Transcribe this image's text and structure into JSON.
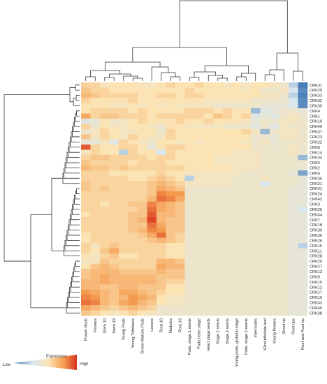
{
  "chart_data": {
    "type": "heatmap",
    "columns": [
      "Flower Buds",
      "Flowers",
      "Stem.10",
      "Stem.19",
      "Young Pods",
      "Young Trifoliates",
      "Green.Mature.Pods",
      "Leaves",
      "Root.10",
      "Nodules",
      "Root.19",
      "Pods..stage.1.seeds",
      "Pods.heart.stage",
      "Heart.stage.seeds",
      "Stage.1.seeds",
      "Stage.2.seeds",
      "Young.pods..globular.stage",
      "Pods..stage.2.seeds",
      "Internodes",
      "X2nd.trifoliate.leaf",
      "Young flowers",
      "Shoot tip",
      "Root tips",
      "Root and Root tip"
    ],
    "rows": [
      "CRK31",
      "CRK29",
      "CRK33",
      "CRK32",
      "CRK30",
      "CRK4",
      "CRK1",
      "CRK19",
      "CRK40",
      "CRK37",
      "CRK23",
      "CRK22",
      "CRK8",
      "CRK14",
      "CRK34",
      "CRK5",
      "CRK2",
      "CRK6",
      "CRK35",
      "CRK21",
      "CRK41",
      "CRK24",
      "CRK42",
      "CRK3",
      "CRK25",
      "CRK44",
      "CRK7",
      "CRK18",
      "CRK39",
      "CRK36",
      "CRK26",
      "CRK16",
      "CRK11",
      "CRK28",
      "CRK20",
      "CRK27",
      "CRK13",
      "CRK9",
      "CRK15",
      "CRK12",
      "CRK17",
      "CRK10",
      "CRK43",
      "CRK45",
      "CRK38"
    ],
    "values": [
      [
        0.55,
        0.55,
        0.45,
        0.5,
        0.5,
        0.5,
        0.45,
        0.45,
        0.5,
        0.55,
        0.5,
        0.5,
        0.55,
        0.5,
        0.5,
        0.45,
        0.5,
        0.45,
        0.5,
        0.5,
        0.45,
        0.4,
        0.2,
        0.02
      ],
      [
        0.6,
        0.55,
        0.55,
        0.5,
        0.5,
        0.5,
        0.5,
        0.5,
        0.5,
        0.5,
        0.5,
        0.55,
        0.5,
        0.5,
        0.5,
        0.5,
        0.5,
        0.45,
        0.5,
        0.4,
        0.4,
        0.45,
        0.25,
        0.05
      ],
      [
        0.65,
        0.6,
        0.55,
        0.55,
        0.55,
        0.55,
        0.5,
        0.5,
        0.55,
        0.55,
        0.5,
        0.55,
        0.55,
        0.5,
        0.5,
        0.5,
        0.5,
        0.5,
        0.5,
        0.45,
        0.45,
        0.4,
        0.2,
        0.03
      ],
      [
        0.55,
        0.5,
        0.5,
        0.5,
        0.5,
        0.55,
        0.5,
        0.5,
        0.5,
        0.5,
        0.5,
        0.5,
        0.5,
        0.45,
        0.45,
        0.45,
        0.45,
        0.45,
        0.4,
        0.4,
        0.4,
        0.4,
        0.25,
        0.05
      ],
      [
        0.5,
        0.5,
        0.5,
        0.45,
        0.45,
        0.5,
        0.45,
        0.5,
        0.45,
        0.5,
        0.45,
        0.45,
        0.45,
        0.45,
        0.4,
        0.4,
        0.4,
        0.4,
        0.4,
        0.35,
        0.35,
        0.35,
        0.25,
        0.05
      ],
      [
        0.5,
        0.55,
        0.55,
        0.55,
        0.55,
        0.5,
        0.55,
        0.5,
        0.5,
        0.5,
        0.5,
        0.55,
        0.55,
        0.55,
        0.5,
        0.55,
        0.5,
        0.5,
        0.15,
        0.3,
        0.35,
        0.4,
        0.4,
        0.35
      ],
      [
        0.7,
        0.55,
        0.6,
        0.6,
        0.55,
        0.55,
        0.55,
        0.5,
        0.55,
        0.55,
        0.55,
        0.55,
        0.55,
        0.5,
        0.6,
        0.55,
        0.5,
        0.55,
        0.3,
        0.35,
        0.3,
        0.4,
        0.45,
        0.4
      ],
      [
        0.3,
        0.35,
        0.5,
        0.4,
        0.45,
        0.5,
        0.55,
        0.5,
        0.5,
        0.5,
        0.55,
        0.5,
        0.5,
        0.55,
        0.5,
        0.5,
        0.5,
        0.45,
        0.35,
        0.4,
        0.4,
        0.45,
        0.45,
        0.4
      ],
      [
        0.55,
        0.4,
        0.5,
        0.45,
        0.45,
        0.5,
        0.5,
        0.45,
        0.4,
        0.5,
        0.5,
        0.45,
        0.45,
        0.45,
        0.45,
        0.4,
        0.4,
        0.4,
        0.3,
        0.4,
        0.3,
        0.45,
        0.4,
        0.4
      ],
      [
        0.4,
        0.45,
        0.55,
        0.5,
        0.45,
        0.45,
        0.5,
        0.5,
        0.4,
        0.55,
        0.5,
        0.5,
        0.5,
        0.5,
        0.5,
        0.5,
        0.5,
        0.55,
        0.45,
        0.15,
        0.4,
        0.45,
        0.45,
        0.4
      ],
      [
        0.6,
        0.45,
        0.55,
        0.5,
        0.45,
        0.55,
        0.5,
        0.45,
        0.45,
        0.55,
        0.5,
        0.5,
        0.5,
        0.5,
        0.5,
        0.5,
        0.5,
        0.5,
        0.4,
        0.4,
        0.35,
        0.45,
        0.45,
        0.4
      ],
      [
        0.35,
        0.35,
        0.45,
        0.3,
        0.55,
        0.5,
        0.45,
        0.4,
        0.5,
        0.5,
        0.45,
        0.5,
        0.45,
        0.5,
        0.5,
        0.5,
        0.5,
        0.45,
        0.4,
        0.45,
        0.35,
        0.4,
        0.4,
        0.4
      ],
      [
        0.9,
        0.55,
        0.5,
        0.5,
        0.55,
        0.55,
        0.5,
        0.35,
        0.5,
        0.55,
        0.55,
        0.5,
        0.5,
        0.5,
        0.5,
        0.5,
        0.5,
        0.5,
        0.4,
        0.4,
        0.4,
        0.4,
        0.45,
        0.4
      ],
      [
        0.45,
        0.55,
        0.5,
        0.5,
        0.2,
        0.55,
        0.5,
        0.5,
        0.25,
        0.55,
        0.5,
        0.5,
        0.5,
        0.5,
        0.5,
        0.5,
        0.45,
        0.45,
        0.45,
        0.4,
        0.4,
        0.4,
        0.45,
        0.4
      ],
      [
        0.55,
        0.6,
        0.6,
        0.55,
        0.55,
        0.55,
        0.55,
        0.5,
        0.55,
        0.55,
        0.5,
        0.5,
        0.5,
        0.5,
        0.45,
        0.45,
        0.45,
        0.45,
        0.45,
        0.4,
        0.4,
        0.4,
        0.4,
        0.15
      ],
      [
        0.6,
        0.55,
        0.55,
        0.55,
        0.55,
        0.5,
        0.55,
        0.55,
        0.55,
        0.5,
        0.5,
        0.5,
        0.5,
        0.5,
        0.45,
        0.45,
        0.45,
        0.45,
        0.45,
        0.4,
        0.4,
        0.4,
        0.4,
        0.4
      ],
      [
        0.65,
        0.6,
        0.6,
        0.55,
        0.6,
        0.55,
        0.55,
        0.55,
        0.55,
        0.55,
        0.55,
        0.5,
        0.5,
        0.5,
        0.5,
        0.5,
        0.45,
        0.45,
        0.45,
        0.4,
        0.4,
        0.4,
        0.4,
        0.35
      ],
      [
        0.55,
        0.55,
        0.55,
        0.5,
        0.5,
        0.5,
        0.5,
        0.5,
        0.55,
        0.5,
        0.5,
        0.45,
        0.45,
        0.45,
        0.45,
        0.45,
        0.45,
        0.4,
        0.4,
        0.4,
        0.4,
        0.4,
        0.35,
        0.1
      ],
      [
        0.55,
        0.55,
        0.55,
        0.55,
        0.55,
        0.5,
        0.5,
        0.55,
        0.6,
        0.55,
        0.5,
        0.2,
        0.45,
        0.45,
        0.45,
        0.45,
        0.4,
        0.4,
        0.4,
        0.45,
        0.4,
        0.4,
        0.4,
        0.35
      ],
      [
        0.6,
        0.55,
        0.55,
        0.55,
        0.55,
        0.55,
        0.55,
        0.6,
        0.65,
        0.6,
        0.55,
        0.45,
        0.45,
        0.45,
        0.45,
        0.45,
        0.4,
        0.4,
        0.4,
        0.25,
        0.4,
        0.4,
        0.4,
        0.35
      ],
      [
        0.6,
        0.55,
        0.6,
        0.55,
        0.55,
        0.55,
        0.55,
        0.6,
        0.7,
        0.65,
        0.6,
        0.4,
        0.4,
        0.4,
        0.4,
        0.4,
        0.4,
        0.4,
        0.4,
        0.4,
        0.4,
        0.4,
        0.35,
        0.35
      ],
      [
        0.55,
        0.55,
        0.55,
        0.55,
        0.55,
        0.55,
        0.55,
        0.6,
        0.8,
        0.75,
        0.75,
        0.4,
        0.4,
        0.4,
        0.4,
        0.4,
        0.4,
        0.4,
        0.4,
        0.4,
        0.4,
        0.4,
        0.35,
        0.35
      ],
      [
        0.55,
        0.55,
        0.55,
        0.55,
        0.55,
        0.55,
        0.55,
        0.65,
        0.85,
        0.8,
        0.7,
        0.4,
        0.4,
        0.4,
        0.4,
        0.4,
        0.4,
        0.4,
        0.4,
        0.4,
        0.4,
        0.4,
        0.35,
        0.35
      ],
      [
        0.55,
        0.55,
        0.5,
        0.55,
        0.55,
        0.6,
        0.6,
        0.8,
        0.7,
        0.65,
        0.6,
        0.4,
        0.4,
        0.4,
        0.4,
        0.4,
        0.4,
        0.4,
        0.4,
        0.4,
        0.4,
        0.4,
        0.35,
        0.35
      ],
      [
        0.55,
        0.55,
        0.55,
        0.55,
        0.55,
        0.55,
        0.6,
        0.85,
        0.7,
        0.65,
        0.6,
        0.4,
        0.4,
        0.4,
        0.4,
        0.4,
        0.4,
        0.4,
        0.4,
        0.4,
        0.4,
        0.4,
        0.35,
        0.25
      ],
      [
        0.5,
        0.55,
        0.55,
        0.55,
        0.55,
        0.6,
        0.6,
        0.9,
        0.65,
        0.65,
        0.6,
        0.4,
        0.4,
        0.4,
        0.4,
        0.4,
        0.4,
        0.4,
        0.4,
        0.4,
        0.4,
        0.4,
        0.35,
        0.35
      ],
      [
        0.55,
        0.55,
        0.55,
        0.55,
        0.55,
        0.6,
        0.65,
        0.95,
        0.65,
        0.6,
        0.6,
        0.4,
        0.4,
        0.4,
        0.4,
        0.4,
        0.4,
        0.4,
        0.4,
        0.4,
        0.4,
        0.4,
        0.35,
        0.35
      ],
      [
        0.55,
        0.55,
        0.55,
        0.55,
        0.55,
        0.6,
        0.6,
        0.85,
        0.7,
        0.6,
        0.6,
        0.4,
        0.4,
        0.4,
        0.4,
        0.4,
        0.4,
        0.4,
        0.4,
        0.4,
        0.4,
        0.4,
        0.35,
        0.35
      ],
      [
        0.55,
        0.55,
        0.55,
        0.55,
        0.55,
        0.6,
        0.65,
        0.8,
        0.75,
        0.6,
        0.6,
        0.4,
        0.4,
        0.4,
        0.4,
        0.4,
        0.4,
        0.4,
        0.4,
        0.4,
        0.4,
        0.4,
        0.35,
        0.35
      ],
      [
        0.5,
        0.55,
        0.55,
        0.55,
        0.55,
        0.55,
        0.6,
        0.7,
        0.85,
        0.6,
        0.55,
        0.4,
        0.4,
        0.4,
        0.4,
        0.4,
        0.4,
        0.4,
        0.4,
        0.4,
        0.4,
        0.4,
        0.35,
        0.35
      ],
      [
        0.5,
        0.55,
        0.55,
        0.55,
        0.55,
        0.55,
        0.55,
        0.6,
        0.65,
        0.6,
        0.55,
        0.4,
        0.4,
        0.4,
        0.4,
        0.4,
        0.4,
        0.4,
        0.4,
        0.4,
        0.4,
        0.4,
        0.35,
        0.35
      ],
      [
        0.55,
        0.45,
        0.55,
        0.6,
        0.55,
        0.55,
        0.55,
        0.55,
        0.55,
        0.5,
        0.5,
        0.4,
        0.4,
        0.4,
        0.4,
        0.4,
        0.4,
        0.4,
        0.4,
        0.4,
        0.4,
        0.4,
        0.35,
        0.2
      ],
      [
        0.55,
        0.5,
        0.6,
        0.7,
        0.55,
        0.55,
        0.55,
        0.55,
        0.55,
        0.5,
        0.5,
        0.4,
        0.4,
        0.4,
        0.4,
        0.4,
        0.4,
        0.4,
        0.4,
        0.4,
        0.4,
        0.4,
        0.35,
        0.35
      ],
      [
        0.5,
        0.45,
        0.55,
        0.6,
        0.5,
        0.5,
        0.55,
        0.55,
        0.55,
        0.5,
        0.5,
        0.4,
        0.4,
        0.4,
        0.4,
        0.4,
        0.4,
        0.4,
        0.4,
        0.4,
        0.4,
        0.4,
        0.35,
        0.35
      ],
      [
        0.45,
        0.45,
        0.6,
        0.55,
        0.55,
        0.55,
        0.55,
        0.55,
        0.65,
        0.65,
        0.6,
        0.4,
        0.4,
        0.4,
        0.4,
        0.4,
        0.4,
        0.4,
        0.4,
        0.4,
        0.4,
        0.4,
        0.35,
        0.35
      ],
      [
        0.5,
        0.6,
        0.65,
        0.6,
        0.55,
        0.55,
        0.55,
        0.55,
        0.7,
        0.65,
        0.65,
        0.4,
        0.4,
        0.4,
        0.4,
        0.4,
        0.4,
        0.4,
        0.4,
        0.4,
        0.4,
        0.4,
        0.35,
        0.35
      ],
      [
        0.6,
        0.65,
        0.65,
        0.65,
        0.6,
        0.6,
        0.6,
        0.6,
        0.65,
        0.6,
        0.6,
        0.4,
        0.4,
        0.4,
        0.4,
        0.4,
        0.4,
        0.4,
        0.4,
        0.4,
        0.4,
        0.4,
        0.35,
        0.35
      ],
      [
        0.6,
        0.65,
        0.7,
        0.65,
        0.65,
        0.65,
        0.65,
        0.65,
        0.6,
        0.6,
        0.6,
        0.4,
        0.4,
        0.4,
        0.4,
        0.4,
        0.4,
        0.4,
        0.4,
        0.4,
        0.4,
        0.4,
        0.35,
        0.35
      ],
      [
        0.65,
        0.65,
        0.7,
        0.65,
        0.65,
        0.65,
        0.65,
        0.65,
        0.6,
        0.55,
        0.55,
        0.4,
        0.4,
        0.4,
        0.4,
        0.4,
        0.4,
        0.4,
        0.4,
        0.4,
        0.4,
        0.4,
        0.35,
        0.35
      ],
      [
        0.65,
        0.65,
        0.6,
        0.6,
        0.65,
        0.65,
        0.6,
        0.6,
        0.6,
        0.5,
        0.5,
        0.4,
        0.4,
        0.4,
        0.4,
        0.4,
        0.4,
        0.4,
        0.4,
        0.4,
        0.4,
        0.4,
        0.35,
        0.35
      ],
      [
        0.75,
        0.7,
        0.65,
        0.6,
        0.7,
        0.7,
        0.65,
        0.6,
        0.55,
        0.5,
        0.5,
        0.4,
        0.4,
        0.4,
        0.4,
        0.4,
        0.4,
        0.4,
        0.4,
        0.4,
        0.4,
        0.4,
        0.35,
        0.35
      ],
      [
        0.8,
        0.75,
        0.65,
        0.6,
        0.65,
        0.75,
        0.7,
        0.65,
        0.5,
        0.45,
        0.45,
        0.4,
        0.4,
        0.4,
        0.4,
        0.4,
        0.4,
        0.4,
        0.4,
        0.4,
        0.4,
        0.4,
        0.35,
        0.35
      ],
      [
        0.85,
        0.8,
        0.65,
        0.6,
        0.7,
        0.75,
        0.65,
        0.6,
        0.5,
        0.45,
        0.45,
        0.4,
        0.4,
        0.4,
        0.4,
        0.4,
        0.4,
        0.4,
        0.4,
        0.4,
        0.4,
        0.4,
        0.35,
        0.35
      ],
      [
        0.7,
        0.65,
        0.6,
        0.55,
        0.6,
        0.65,
        0.6,
        0.55,
        0.4,
        0.4,
        0.4,
        0.4,
        0.4,
        0.4,
        0.4,
        0.4,
        0.4,
        0.4,
        0.4,
        0.4,
        0.4,
        0.4,
        0.35,
        0.35
      ],
      [
        0.6,
        0.55,
        0.5,
        0.45,
        0.5,
        0.55,
        0.5,
        0.45,
        0.4,
        0.4,
        0.4,
        0.4,
        0.4,
        0.4,
        0.4,
        0.4,
        0.4,
        0.4,
        0.4,
        0.4,
        0.4,
        0.4,
        0.35,
        0.35
      ]
    ],
    "value_range": [
      0,
      1
    ],
    "color_scale": [
      "#3a73b3",
      "#d9e8ee",
      "#fbe3b3",
      "#f49a4e",
      "#d7301f"
    ],
    "legend": {
      "title": "Expression",
      "low_label": "Low",
      "high_label": "High",
      "placement": "bottom-left"
    },
    "dendrograms": [
      "top",
      "left"
    ]
  }
}
